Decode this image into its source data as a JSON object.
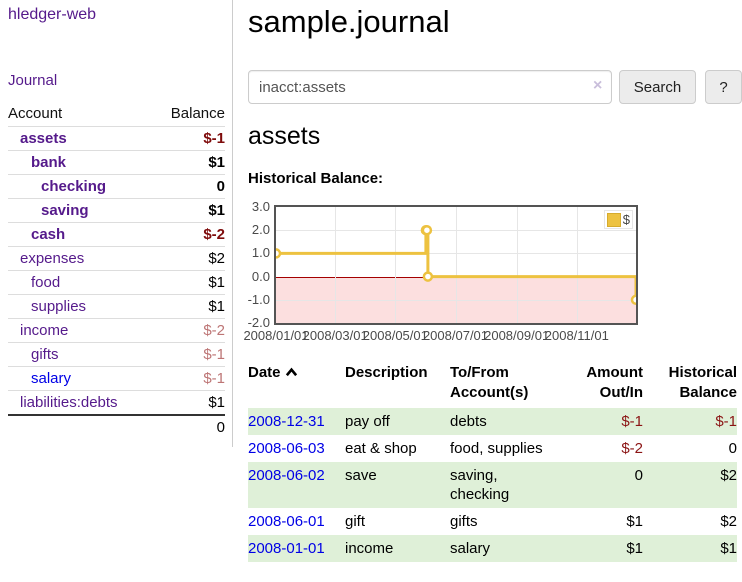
{
  "app": {
    "brand": "hledger-web",
    "journal_nav": "Journal"
  },
  "sidebar": {
    "header": {
      "account": "Account",
      "balance": "Balance"
    },
    "accounts": [
      {
        "name": "assets",
        "balance": "$-1"
      },
      {
        "name": "bank",
        "balance": "$1"
      },
      {
        "name": "checking",
        "balance": "0"
      },
      {
        "name": "saving",
        "balance": "$1"
      },
      {
        "name": "cash",
        "balance": "$-2"
      },
      {
        "name": "expenses",
        "balance": "$2"
      },
      {
        "name": "food",
        "balance": "$1"
      },
      {
        "name": "supplies",
        "balance": "$1"
      },
      {
        "name": "income",
        "balance": "$-2"
      },
      {
        "name": "gifts",
        "balance": "$-1"
      },
      {
        "name": "salary",
        "balance": "$-1"
      },
      {
        "name": "liabilities:debts",
        "balance": "$1"
      }
    ],
    "total": "0"
  },
  "main": {
    "title": "sample.journal",
    "search": {
      "value": "inacct:assets",
      "clear_icon": "×",
      "search_button": "Search",
      "help_button": "?"
    },
    "account_heading": "assets",
    "chart_title": "Historical Balance:"
  },
  "chart_data": {
    "type": "line",
    "step": true,
    "title": "Historical Balance",
    "x_range": [
      "2008-01-01",
      "2008-12-31"
    ],
    "ylim": [
      -2.0,
      3.0
    ],
    "yticks": [
      3.0,
      2.0,
      1.0,
      0.0,
      -1.0,
      -2.0
    ],
    "xtick_dates": [
      "2008-01-01",
      "2008-03-01",
      "2008-05-01",
      "2008-07-01",
      "2008-09-01",
      "2008-11-01"
    ],
    "xtick_labels": [
      "2008/01/01",
      "2008/03/01",
      "2008/05/01",
      "2008/07/01",
      "2008/09/01",
      "2008/11/01"
    ],
    "legend": [
      {
        "label": "$",
        "color": "#edc240"
      }
    ],
    "series": [
      {
        "name": "$",
        "color": "#edc240",
        "points": [
          [
            "2008-01-01",
            1.0
          ],
          [
            "2008-06-01",
            2.0
          ],
          [
            "2008-06-02",
            2.0
          ],
          [
            "2008-06-03",
            0.0
          ],
          [
            "2008-12-31",
            -1.0
          ]
        ]
      }
    ],
    "negative_region_color": "#fcdfdf",
    "zero_line_color": "#a40000",
    "grid_color": "#e6e6e6"
  },
  "register": {
    "columns": {
      "date": "Date",
      "description": "Description",
      "accounts": "To/From Account(s)",
      "amount": "Amount Out/In",
      "balance": "Historical Balance"
    },
    "rows": [
      {
        "date": "2008-12-31",
        "description": "pay off",
        "accounts": "debts",
        "amount": "$-1",
        "balance": "$-1"
      },
      {
        "date": "2008-06-03",
        "description": "eat & shop",
        "accounts": "food, supplies",
        "amount": "$-2",
        "balance": "0"
      },
      {
        "date": "2008-06-02",
        "description": "save",
        "accounts": "saving, checking",
        "amount": "0",
        "balance": "$2"
      },
      {
        "date": "2008-06-01",
        "description": "gift",
        "accounts": "gifts",
        "amount": "$1",
        "balance": "$2"
      },
      {
        "date": "2008-01-01",
        "description": "income",
        "accounts": "salary",
        "amount": "$1",
        "balance": "$1"
      }
    ]
  },
  "icons": {
    "sort_ascending": "chevron-up",
    "clear_search": "×"
  },
  "colors": {
    "link_purple": "#551a8b",
    "link_blue": "#0000e6",
    "negative_strong": "#7e0b0b",
    "negative_light": "#bd7575",
    "negative_table": "#8b1414",
    "row_green": "#dff0d8",
    "chart_line": "#edc240",
    "chart_negative_fill": "#fcdfdf",
    "zero_line": "#a40000"
  }
}
